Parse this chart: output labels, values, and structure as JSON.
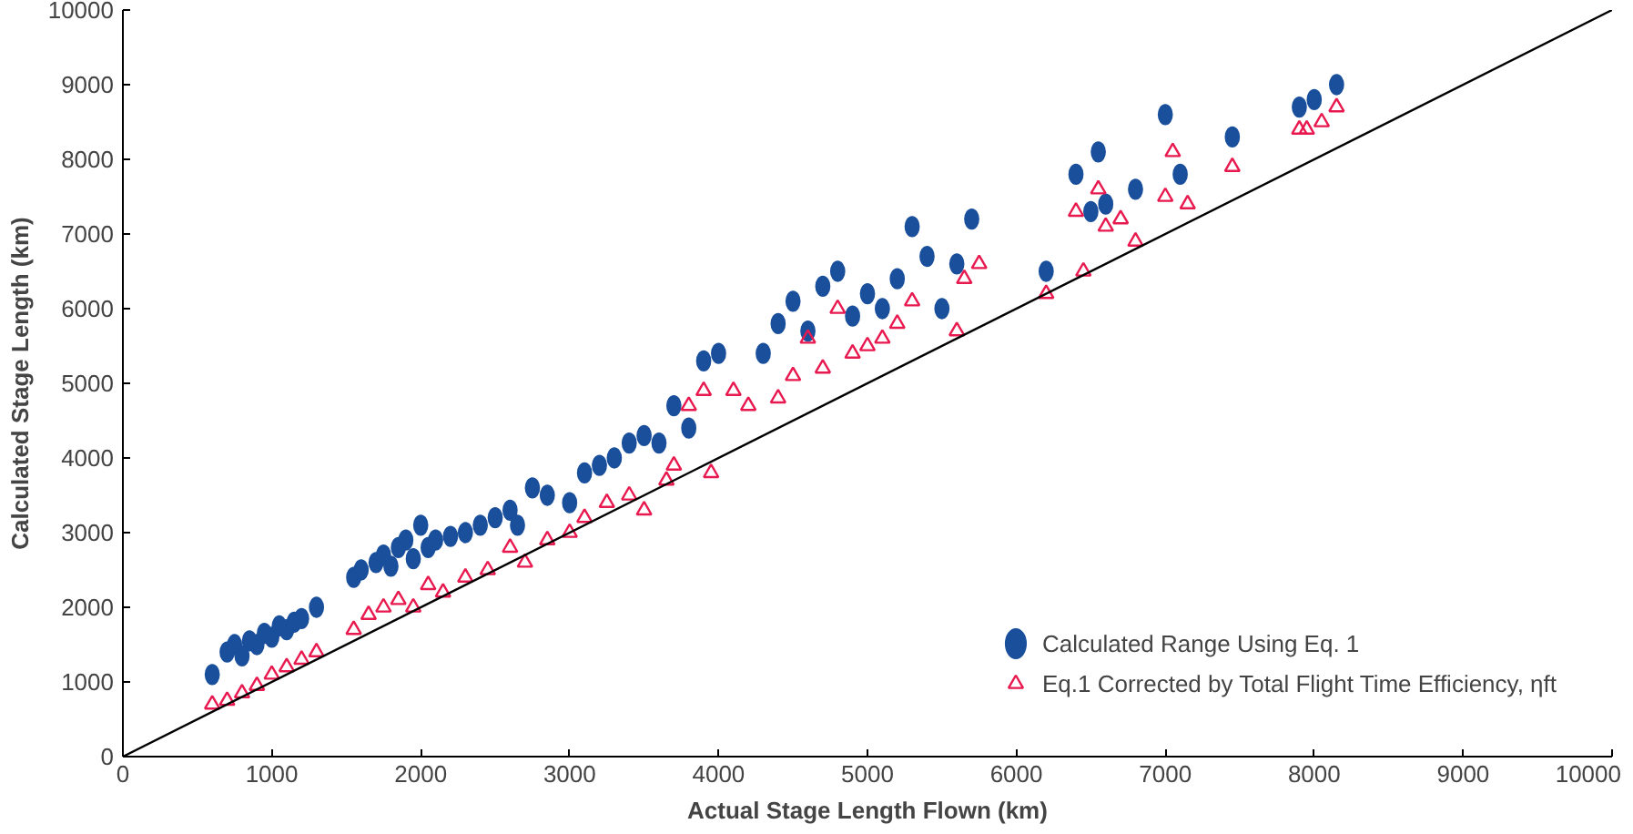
{
  "chart_data": {
    "type": "scatter",
    "xlabel": "Actual Stage Length Flown (km)",
    "ylabel": "Calculated Stage Length (km)",
    "xlim": [
      0,
      10000
    ],
    "ylim": [
      0,
      10000
    ],
    "xticks": [
      0,
      1000,
      2000,
      3000,
      4000,
      5000,
      6000,
      7000,
      8000,
      9000,
      10000
    ],
    "yticks": [
      0,
      1000,
      2000,
      3000,
      4000,
      5000,
      6000,
      7000,
      8000,
      9000,
      10000
    ],
    "grid": false,
    "legend": "bottom right",
    "series": [
      {
        "name": "Calculated Range Using Eq. 1",
        "color": "#1a4f9c",
        "marker": "circle",
        "x": [
          600,
          700,
          750,
          800,
          850,
          900,
          950,
          1000,
          1050,
          1100,
          1150,
          1200,
          1300,
          1550,
          1600,
          1700,
          1750,
          1800,
          1850,
          1900,
          1950,
          2000,
          2050,
          2100,
          2200,
          2300,
          2400,
          2500,
          2600,
          2650,
          2750,
          2850,
          3000,
          3100,
          3200,
          3300,
          3400,
          3500,
          3600,
          3700,
          3800,
          3900,
          4000,
          4300,
          4400,
          4500,
          4600,
          4700,
          4800,
          4900,
          5000,
          5100,
          5200,
          5300,
          5400,
          5500,
          5600,
          5700,
          6200,
          6400,
          6500,
          6550,
          6600,
          6800,
          7000,
          7100,
          7450,
          7900,
          8000,
          8150
        ],
        "values": [
          1100,
          1400,
          1500,
          1350,
          1550,
          1500,
          1650,
          1600,
          1750,
          1700,
          1800,
          1850,
          2000,
          2400,
          2500,
          2600,
          2700,
          2550,
          2800,
          2900,
          2650,
          3100,
          2800,
          2900,
          2950,
          3000,
          3100,
          3200,
          3300,
          3100,
          3600,
          3500,
          3400,
          3800,
          3900,
          4000,
          4200,
          4300,
          4200,
          4700,
          4400,
          5300,
          5400,
          5400,
          5800,
          6100,
          5700,
          6300,
          6500,
          5900,
          6200,
          6000,
          6400,
          7100,
          6700,
          6000,
          6600,
          7200,
          6500,
          7800,
          7300,
          8100,
          7400,
          7600,
          8600,
          7800,
          8300,
          8700,
          8800,
          9000
        ]
      },
      {
        "name": "Eq.1 Corrected by Total Flight Time Efficiency, ηft",
        "color": "#e8194f",
        "marker": "triangle",
        "x": [
          600,
          700,
          800,
          900,
          1000,
          1100,
          1200,
          1300,
          1550,
          1650,
          1750,
          1850,
          1950,
          2050,
          2150,
          2300,
          2450,
          2600,
          2700,
          2850,
          3000,
          3100,
          3250,
          3400,
          3500,
          3650,
          3700,
          3800,
          3900,
          3950,
          4100,
          4200,
          4400,
          4500,
          4600,
          4700,
          4800,
          4900,
          5000,
          5100,
          5200,
          5300,
          5600,
          5650,
          5750,
          6200,
          6400,
          6450,
          6550,
          6600,
          6700,
          6800,
          7000,
          7050,
          7150,
          7450,
          7900,
          7950,
          8050,
          8150
        ],
        "values": [
          700,
          750,
          850,
          950,
          1100,
          1200,
          1300,
          1400,
          1700,
          1900,
          2000,
          2100,
          2000,
          2300,
          2200,
          2400,
          2500,
          2800,
          2600,
          2900,
          3000,
          3200,
          3400,
          3500,
          3300,
          3700,
          3900,
          4700,
          4900,
          3800,
          4900,
          4700,
          4800,
          5100,
          5600,
          5200,
          6000,
          5400,
          5500,
          5600,
          5800,
          6100,
          5700,
          6400,
          6600,
          6200,
          7300,
          6500,
          7600,
          7100,
          7200,
          6900,
          7500,
          8100,
          7400,
          7900,
          8400,
          8400,
          8500,
          8700
        ]
      },
      {
        "type": "line",
        "color": "#000000",
        "x": [
          0,
          10000
        ],
        "values": [
          0,
          10000
        ]
      }
    ]
  }
}
